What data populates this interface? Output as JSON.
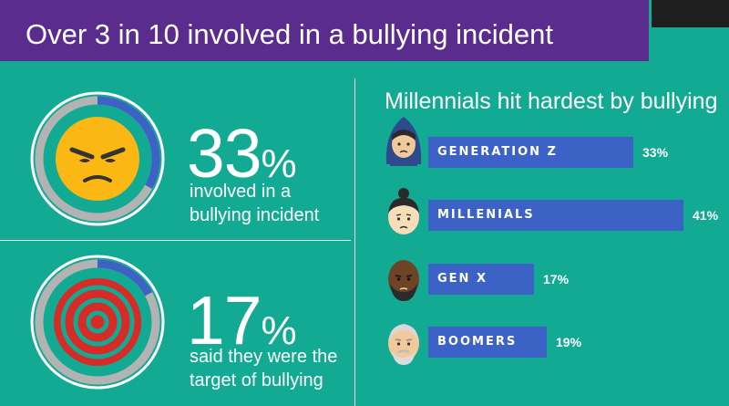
{
  "title": "Over 3 in 10 involved in a bullying incident",
  "stats": [
    {
      "value": "33",
      "symbol": "%",
      "desc_line1": "involved in a",
      "desc_line2": "bullying incident",
      "icon": "angry-face-icon",
      "fraction": 0.33
    },
    {
      "value": "17",
      "symbol": "%",
      "desc_line1": "said they were the",
      "desc_line2": "target of bullying",
      "icon": "target-icon",
      "fraction": 0.17
    }
  ],
  "colors": {
    "background": "#12aa92",
    "title_bar": "#5a2c8e",
    "bar": "#3c62c6",
    "ring_gray": "#b3b3b3",
    "ring_blue": "#3c62c6"
  },
  "chart_data": {
    "type": "bar",
    "orientation": "horizontal",
    "title": "Millennials hit hardest by bullying",
    "categories": [
      "GENERATION Z",
      "MILLENIALS",
      "GEN X",
      "BOOMERS"
    ],
    "values": [
      33,
      41,
      17,
      19
    ],
    "value_labels": [
      "33%",
      "41%",
      "17%",
      "19%"
    ],
    "icons": [
      "gen-z-avatar-icon",
      "millennial-avatar-icon",
      "gen-x-avatar-icon",
      "boomer-avatar-icon"
    ]
  }
}
